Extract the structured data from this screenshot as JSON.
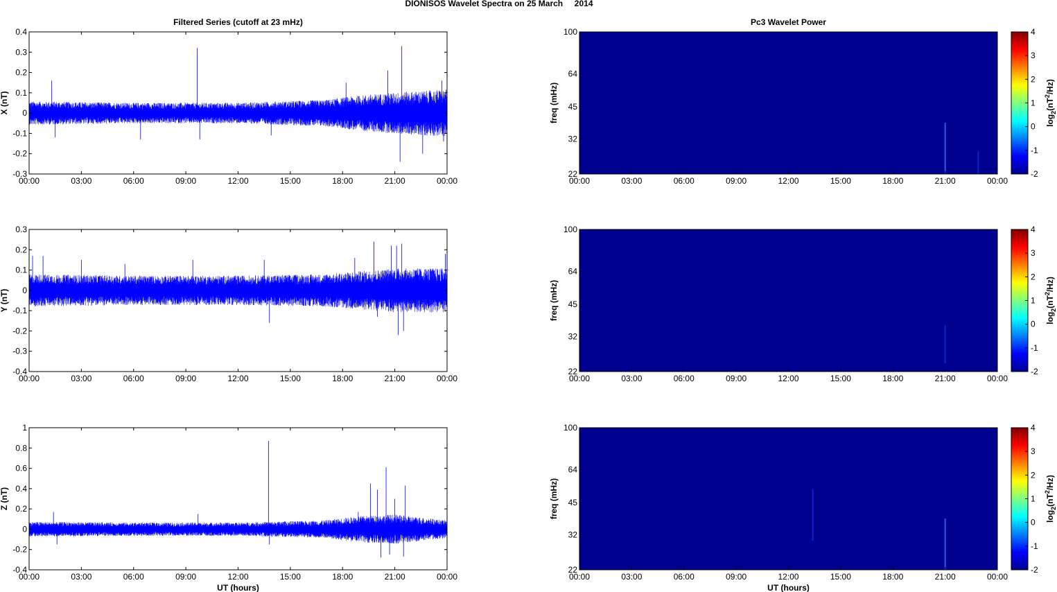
{
  "figure": {
    "title": "DIONISOS Wavelet Spectra on 25 March     2014"
  },
  "colors": {
    "trace": "#0000ff",
    "power_background": "#00008f",
    "colormap": [
      "#00008f",
      "#0000ff",
      "#00ffff",
      "#ffff00",
      "#ff0000",
      "#800000"
    ]
  },
  "chart_data": [
    {
      "type": "line",
      "title": "Filtered Series (cutoff at 23 mHz)",
      "ylabel": "X (nT)",
      "xlabel": "",
      "xlim": [
        0,
        24
      ],
      "ylim": [
        -0.3,
        0.4
      ],
      "x_tick_labels": [
        "00:00",
        "03:00",
        "06:00",
        "09:00",
        "12:00",
        "15:00",
        "18:00",
        "21:00",
        "00:00"
      ],
      "y_ticks": [
        -0.3,
        -0.2,
        -0.1,
        0,
        0.1,
        0.2,
        0.3,
        0.4
      ],
      "y_tick_labels": [
        "-0.3",
        "-0.2",
        "-0.1",
        "0",
        "0.1",
        "0.2",
        "0.3",
        "0.4"
      ],
      "noise_envelope": [
        [
          0,
          0.04
        ],
        [
          6,
          0.035
        ],
        [
          12,
          0.035
        ],
        [
          17,
          0.045
        ],
        [
          19,
          0.06
        ],
        [
          21,
          0.07
        ],
        [
          24,
          0.08
        ]
      ],
      "spikes": [
        [
          1.3,
          0.16
        ],
        [
          1.5,
          -0.12
        ],
        [
          6.4,
          -0.13
        ],
        [
          9.65,
          0.32
        ],
        [
          9.8,
          -0.13
        ],
        [
          13.9,
          -0.11
        ],
        [
          18.2,
          0.15
        ],
        [
          20.6,
          0.21
        ],
        [
          21.4,
          0.33
        ],
        [
          21.3,
          -0.24
        ],
        [
          22.6,
          -0.2
        ],
        [
          23.7,
          0.16
        ],
        [
          23.8,
          -0.14
        ]
      ]
    },
    {
      "type": "line",
      "title": "",
      "ylabel": "Y (nT)",
      "xlabel": "",
      "xlim": [
        0,
        24
      ],
      "ylim": [
        -0.4,
        0.3
      ],
      "x_tick_labels": [
        "00:00",
        "03:00",
        "06:00",
        "09:00",
        "12:00",
        "15:00",
        "18:00",
        "21:00",
        "00:00"
      ],
      "y_ticks": [
        -0.4,
        -0.3,
        -0.2,
        -0.1,
        0,
        0.1,
        0.2,
        0.3
      ],
      "y_tick_labels": [
        "-0.4",
        "-0.3",
        "-0.2",
        "-0.1",
        "0",
        "0.1",
        "0.2",
        "0.3"
      ],
      "noise_envelope": [
        [
          0,
          0.055
        ],
        [
          6,
          0.05
        ],
        [
          12,
          0.05
        ],
        [
          17,
          0.055
        ],
        [
          19,
          0.065
        ],
        [
          21,
          0.075
        ],
        [
          24,
          0.075
        ]
      ],
      "spikes": [
        [
          0.2,
          0.17
        ],
        [
          0.8,
          0.17
        ],
        [
          3.0,
          0.15
        ],
        [
          5.5,
          0.13
        ],
        [
          9.4,
          0.15
        ],
        [
          13.5,
          0.15
        ],
        [
          13.8,
          -0.16
        ],
        [
          18.7,
          0.16
        ],
        [
          19.8,
          0.24
        ],
        [
          20.0,
          -0.13
        ],
        [
          20.8,
          0.22
        ],
        [
          21.1,
          0.22
        ],
        [
          21.2,
          -0.22
        ],
        [
          21.4,
          0.23
        ],
        [
          21.5,
          -0.2
        ],
        [
          23.9,
          0.18
        ]
      ]
    },
    {
      "type": "line",
      "title": "",
      "ylabel": "Z (nT)",
      "xlabel": "UT (hours)",
      "xlim": [
        0,
        24
      ],
      "ylim": [
        -0.4,
        1.0
      ],
      "x_tick_labels": [
        "00:00",
        "03:00",
        "06:00",
        "09:00",
        "12:00",
        "15:00",
        "18:00",
        "21:00",
        "00:00"
      ],
      "y_ticks": [
        -0.4,
        -0.2,
        0,
        0.2,
        0.4,
        0.6,
        0.8,
        1.0
      ],
      "y_tick_labels": [
        "-0.4",
        "-0.2",
        "0",
        "0.2",
        "0.4",
        "0.6",
        "0.8",
        "1"
      ],
      "noise_envelope": [
        [
          0,
          0.05
        ],
        [
          6,
          0.045
        ],
        [
          12,
          0.045
        ],
        [
          17,
          0.06
        ],
        [
          19,
          0.09
        ],
        [
          21,
          0.1
        ],
        [
          24,
          0.06
        ]
      ],
      "spikes": [
        [
          1.4,
          0.17
        ],
        [
          1.6,
          -0.15
        ],
        [
          9.7,
          0.15
        ],
        [
          13.75,
          0.87
        ],
        [
          13.8,
          -0.15
        ],
        [
          18.9,
          0.17
        ],
        [
          19.6,
          0.45
        ],
        [
          20.0,
          0.39
        ],
        [
          20.2,
          -0.28
        ],
        [
          20.5,
          0.61
        ],
        [
          20.7,
          -0.25
        ],
        [
          21.0,
          0.3
        ],
        [
          21.6,
          0.43
        ],
        [
          21.5,
          -0.27
        ]
      ]
    },
    {
      "type": "heatmap",
      "title": "Pc3 Wavelet Power",
      "ylabel": "freq (mHz)",
      "xlabel": "",
      "colorbar_label": "log2(nT2/Hz)",
      "xlim": [
        0,
        24
      ],
      "ylim": [
        22,
        100
      ],
      "yscale": "log",
      "clim": [
        -2,
        4
      ],
      "x_tick_labels": [
        "00:00",
        "03:00",
        "06:00",
        "09:00",
        "12:00",
        "15:00",
        "18:00",
        "21:00",
        "00:00"
      ],
      "y_ticks": [
        22,
        32,
        45,
        64,
        100
      ],
      "y_tick_labels": [
        "22",
        "32",
        "45",
        "64",
        "100"
      ],
      "colorbar_ticks": [
        -2,
        -1,
        0,
        1,
        2,
        3,
        4
      ],
      "colorbar_tick_labels": [
        "-2",
        "-1",
        "0",
        "1",
        "2",
        "3",
        "4"
      ],
      "baseline_power": -1.7,
      "features": [
        {
          "t": 21.0,
          "f_low": 22,
          "f_high": 38,
          "power": -1.1
        },
        {
          "t": 22.9,
          "f_low": 22,
          "f_high": 28,
          "power": -1.5
        }
      ]
    },
    {
      "type": "heatmap",
      "title": "",
      "ylabel": "freq (mHz)",
      "xlabel": "",
      "colorbar_label": "log2(nT2/Hz)",
      "xlim": [
        0,
        24
      ],
      "ylim": [
        22,
        100
      ],
      "yscale": "log",
      "clim": [
        -2,
        4
      ],
      "x_tick_labels": [
        "00:00",
        "03:00",
        "06:00",
        "09:00",
        "12:00",
        "15:00",
        "18:00",
        "21:00",
        "00:00"
      ],
      "y_ticks": [
        22,
        32,
        45,
        64,
        100
      ],
      "y_tick_labels": [
        "22",
        "32",
        "45",
        "64",
        "100"
      ],
      "colorbar_ticks": [
        -2,
        -1,
        0,
        1,
        2,
        3,
        4
      ],
      "colorbar_tick_labels": [
        "-2",
        "-1",
        "0",
        "1",
        "2",
        "3",
        "4"
      ],
      "baseline_power": -1.7,
      "features": [
        {
          "t": 21.0,
          "f_low": 24,
          "f_high": 36,
          "power": -1.4
        }
      ]
    },
    {
      "type": "heatmap",
      "title": "",
      "ylabel": "freq (mHz)",
      "xlabel": "UT (hours)",
      "colorbar_label": "log2(nT2/Hz)",
      "xlim": [
        0,
        24
      ],
      "ylim": [
        22,
        100
      ],
      "yscale": "log",
      "clim": [
        -2,
        4
      ],
      "x_tick_labels": [
        "00:00",
        "03:00",
        "06:00",
        "09:00",
        "12:00",
        "15:00",
        "18:00",
        "21:00",
        "00:00"
      ],
      "y_ticks": [
        22,
        32,
        45,
        64,
        100
      ],
      "y_tick_labels": [
        "22",
        "32",
        "45",
        "64",
        "100"
      ],
      "colorbar_ticks": [
        -2,
        -1,
        0,
        1,
        2,
        3,
        4
      ],
      "colorbar_tick_labels": [
        "-2",
        "-1",
        "0",
        "1",
        "2",
        "3",
        "4"
      ],
      "baseline_power": -1.7,
      "features": [
        {
          "t": 21.0,
          "f_low": 22,
          "f_high": 38,
          "power": -1.0
        },
        {
          "t": 13.4,
          "f_low": 30,
          "f_high": 52,
          "power": -1.6
        }
      ]
    }
  ]
}
